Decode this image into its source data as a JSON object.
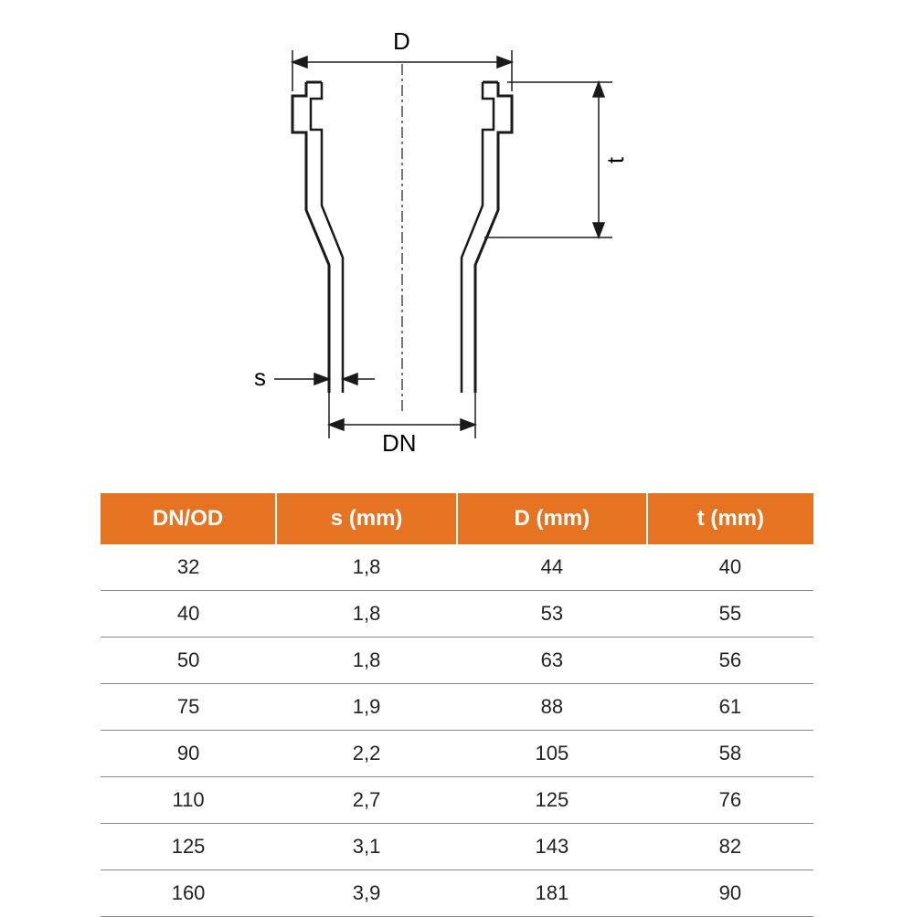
{
  "diagram": {
    "labels": {
      "D": "D",
      "t": "t",
      "s": "s",
      "DN": "DN"
    },
    "stroke_color": "#1a1a1a",
    "stroke_width_main": 3,
    "stroke_width_dim": 1.5,
    "dash_pattern": "6,4"
  },
  "table": {
    "type": "table",
    "header_bg": "#e67321",
    "header_text_color": "#ffffff",
    "row_border_color": "#888888",
    "cell_text_color": "#222222",
    "header_fontsize": 24,
    "cell_fontsize": 22,
    "columns": [
      "DN/OD",
      "s (mm)",
      "D (mm)",
      "t (mm)"
    ],
    "rows": [
      [
        "32",
        "1,8",
        "44",
        "40"
      ],
      [
        "40",
        "1,8",
        "53",
        "55"
      ],
      [
        "50",
        "1,8",
        "63",
        "56"
      ],
      [
        "75",
        "1,9",
        "88",
        "61"
      ],
      [
        "90",
        "2,2",
        "105",
        "58"
      ],
      [
        "110",
        "2,7",
        "125",
        "76"
      ],
      [
        "125",
        "3,1",
        "143",
        "82"
      ],
      [
        "160",
        "3,9",
        "181",
        "90"
      ]
    ]
  }
}
